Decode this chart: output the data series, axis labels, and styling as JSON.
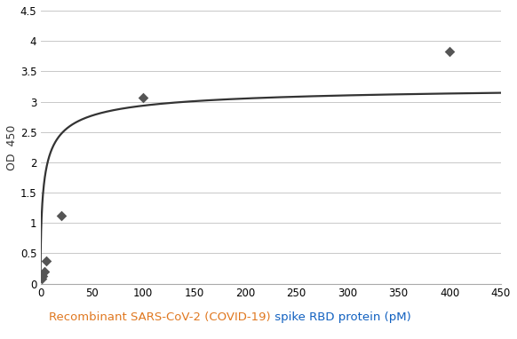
{
  "scatter_x": [
    1.0,
    2.0,
    4.0,
    6.0,
    20.0,
    100.0,
    400.0
  ],
  "scatter_y": [
    0.08,
    0.13,
    0.2,
    0.38,
    1.12,
    3.06,
    3.82
  ],
  "curve_params": {
    "Vmax": 3.3,
    "Km": 3.5,
    "n": 0.62
  },
  "xlim": [
    0,
    450
  ],
  "ylim": [
    0,
    4.5
  ],
  "xticks": [
    0,
    50,
    100,
    150,
    200,
    250,
    300,
    350,
    400,
    450
  ],
  "yticks": [
    0,
    0.5,
    1.0,
    1.5,
    2.0,
    2.5,
    3.0,
    3.5,
    4.0,
    4.5
  ],
  "ylabel_line1": "OD",
  "ylabel_line2": "450",
  "xlabel_part1": "Recombinant SARS-CoV-2 (COVID-19)",
  "xlabel_part2": " spike RBD protein (pM)",
  "xlabel_color1": "#e07820",
  "xlabel_color2": "#1060c0",
  "scatter_color": "#555555",
  "curve_color": "#333333",
  "grid_color": "#c8c8c8",
  "background_color": "#ffffff",
  "tick_fontsize": 8.5,
  "ylabel_fontsize": 9
}
